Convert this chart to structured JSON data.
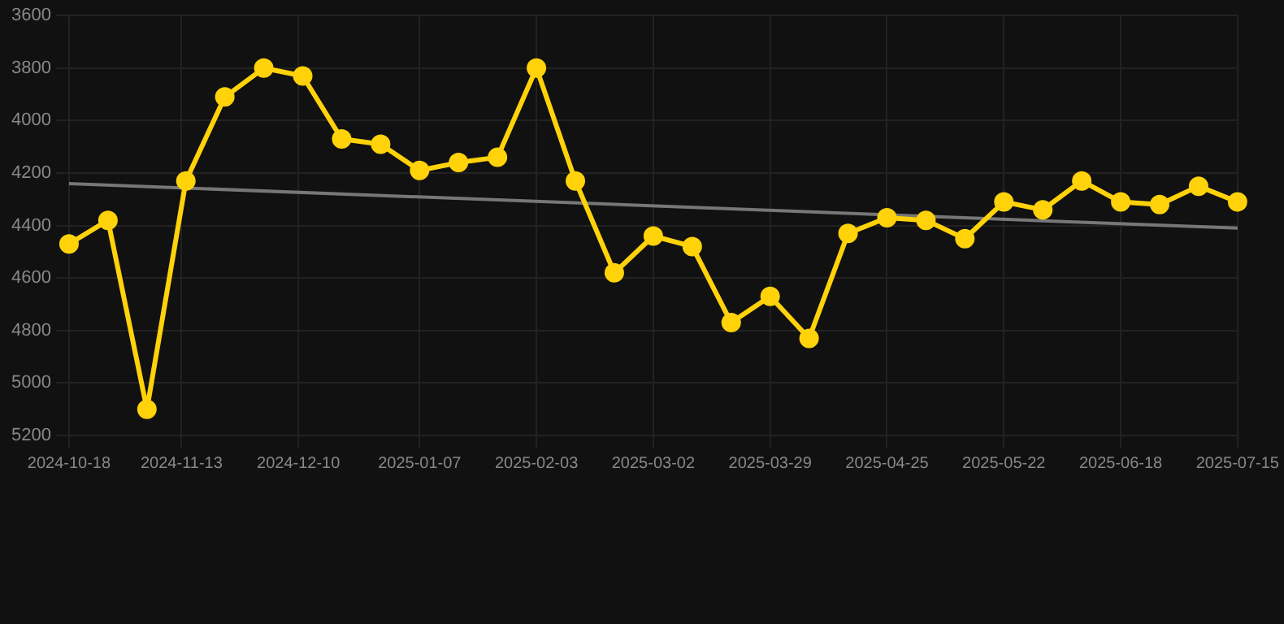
{
  "chart_data": {
    "type": "line",
    "x": [
      "2024-10-18",
      "2024-10-27",
      "2024-11-05",
      "2024-11-14",
      "2024-11-23",
      "2024-12-02",
      "2024-12-11",
      "2024-12-20",
      "2024-12-29",
      "2025-01-07",
      "2025-01-16",
      "2025-01-25",
      "2025-02-03",
      "2025-02-12",
      "2025-02-21",
      "2025-03-02",
      "2025-03-11",
      "2025-03-20",
      "2025-03-29",
      "2025-04-07",
      "2025-04-16",
      "2025-04-25",
      "2025-05-04",
      "2025-05-13",
      "2025-05-22",
      "2025-05-31",
      "2025-06-09",
      "2025-06-18",
      "2025-06-27",
      "2025-07-06",
      "2025-07-15"
    ],
    "series": [
      {
        "color": "#ffd20a",
        "marker": "circle",
        "values": [
          4470,
          4380,
          5100,
          4230,
          3910,
          3800,
          3830,
          4070,
          4090,
          4190,
          4160,
          4140,
          3800,
          4230,
          4580,
          4440,
          4480,
          4770,
          4670,
          4830,
          4430,
          4370,
          4380,
          4450,
          4310,
          4340,
          4230,
          4310,
          4320,
          4250,
          4310
        ]
      },
      {
        "color": "#777777",
        "marker": "none",
        "x": [
          "2024-10-18",
          "2025-07-15"
        ],
        "values": [
          4240,
          4410
        ]
      }
    ],
    "ylim": [
      5200,
      3600
    ],
    "yticks": [
      3600,
      3800,
      4000,
      4200,
      4400,
      4600,
      4800,
      5000,
      5200
    ],
    "xlim": [
      "2024-10-18",
      "2025-07-15"
    ],
    "xticks": [
      "2024-10-18",
      "2024-11-13",
      "2024-12-10",
      "2025-01-07",
      "2025-02-03",
      "2025-03-02",
      "2025-03-29",
      "2025-04-25",
      "2025-05-22",
      "2025-06-18",
      "2025-07-15"
    ],
    "grid": true,
    "legend": false
  }
}
